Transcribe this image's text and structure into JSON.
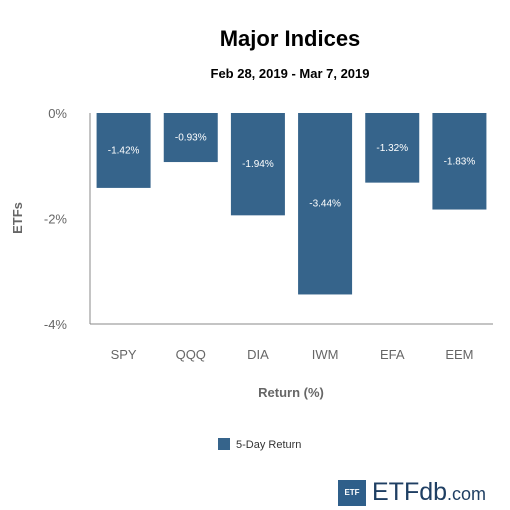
{
  "chart_data": {
    "type": "bar",
    "title": "Major Indices",
    "subtitle": "Feb 28, 2019 - Mar 7, 2019",
    "xlabel": "Return (%)",
    "ylabel": "ETFs",
    "categories": [
      "SPY",
      "QQQ",
      "DIA",
      "IWM",
      "EFA",
      "EEM"
    ],
    "series": [
      {
        "name": "5-Day Return",
        "values": [
          -1.42,
          -0.93,
          -1.94,
          -3.44,
          -1.32,
          -1.83
        ],
        "labels": [
          "-1.42%",
          "-0.93%",
          "-1.94%",
          "-3.44%",
          "-1.32%",
          "-1.83%"
        ]
      }
    ],
    "ylim": [
      -4,
      0
    ],
    "yticks": [
      0,
      -2,
      -4
    ],
    "ytick_labels": [
      "0%",
      "-2%",
      "-4%"
    ],
    "grid": false,
    "legend_position": "bottom",
    "bar_color": "#36648b"
  },
  "branding": {
    "box_text": "ETF",
    "name_main": "ETF",
    "name_db": "db",
    "name_domain": ".com"
  }
}
